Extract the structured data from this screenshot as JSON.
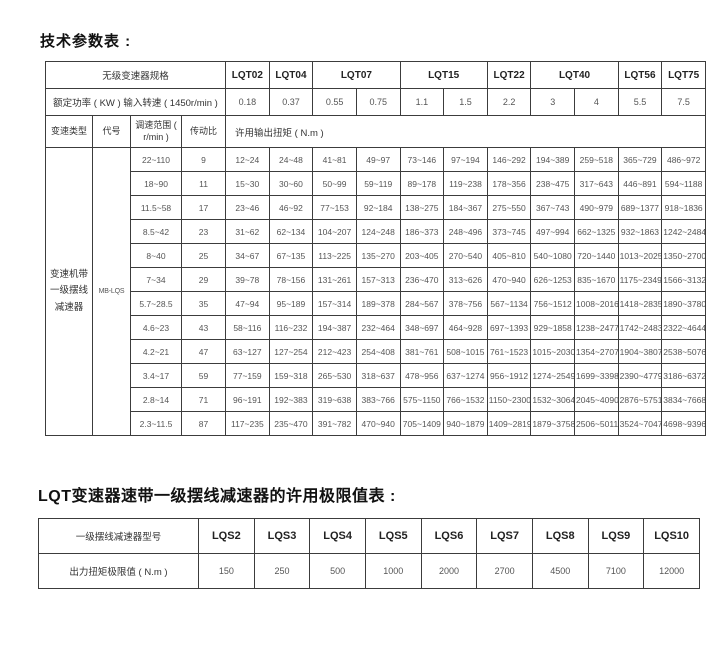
{
  "page": {
    "title1": "技术参数表 :",
    "title2": "LQT变速器速带一级摆线减速器的许用极限值表 :"
  },
  "table1": {
    "spec_header": "无级变速器规格",
    "power_header": "额定功率 ( KW )  输入转速 ( 1450r/min )",
    "models": [
      {
        "label": "LQT02",
        "span": 1
      },
      {
        "label": "LQT04",
        "span": 1
      },
      {
        "label": "LQT07",
        "span": 2
      },
      {
        "label": "LQT15",
        "span": 2
      },
      {
        "label": "LQT22",
        "span": 1
      },
      {
        "label": "LQT40",
        "span": 2
      },
      {
        "label": "LQT56",
        "span": 1
      },
      {
        "label": "LQT75",
        "span": 1
      }
    ],
    "powers": [
      "0.18",
      "0.37",
      "0.55",
      "0.75",
      "1.1",
      "1.5",
      "2.2",
      "3",
      "4",
      "5.5",
      "7.5"
    ],
    "col_headers": [
      "变速类型",
      "代号",
      "调速范围 ( r/min )",
      "传动比"
    ],
    "torque_header": "许用输出扭矩 ( N.m )",
    "type_label": "变速机带一级摆线减速器",
    "code_label": "MB-LQS",
    "rows": [
      {
        "range": "22~110",
        "ratio": "9",
        "torques": [
          "12~24",
          "24~48",
          "41~81",
          "49~97",
          "73~146",
          "97~194",
          "146~292",
          "194~389",
          "259~518",
          "365~729",
          "486~972"
        ]
      },
      {
        "range": "18~90",
        "ratio": "11",
        "torques": [
          "15~30",
          "30~60",
          "50~99",
          "59~119",
          "89~178",
          "119~238",
          "178~356",
          "238~475",
          "317~643",
          "446~891",
          "594~1188"
        ]
      },
      {
        "range": "11.5~58",
        "ratio": "17",
        "torques": [
          "23~46",
          "46~92",
          "77~153",
          "92~184",
          "138~275",
          "184~367",
          "275~550",
          "367~743",
          "490~979",
          "689~1377",
          "918~1836"
        ]
      },
      {
        "range": "8.5~42",
        "ratio": "23",
        "torques": [
          "31~62",
          "62~134",
          "104~207",
          "124~248",
          "186~373",
          "248~496",
          "373~745",
          "497~994",
          "662~1325",
          "932~1863",
          "1242~2484"
        ]
      },
      {
        "range": "8~40",
        "ratio": "25",
        "torques": [
          "34~67",
          "67~135",
          "113~225",
          "135~270",
          "203~405",
          "270~540",
          "405~810",
          "540~1080",
          "720~1440",
          "1013~2025",
          "1350~2700"
        ]
      },
      {
        "range": "7~34",
        "ratio": "29",
        "torques": [
          "39~78",
          "78~156",
          "131~261",
          "157~313",
          "236~470",
          "313~626",
          "470~940",
          "626~1253",
          "835~1670",
          "1175~2349",
          "1566~3132"
        ]
      },
      {
        "range": "5.7~28.5",
        "ratio": "35",
        "torques": [
          "47~94",
          "95~189",
          "157~314",
          "189~378",
          "284~567",
          "378~756",
          "567~1134",
          "756~1512",
          "1008~2016",
          "1418~2835",
          "1890~3780"
        ]
      },
      {
        "range": "4.6~23",
        "ratio": "43",
        "torques": [
          "58~116",
          "116~232",
          "194~387",
          "232~464",
          "348~697",
          "464~928",
          "697~1393",
          "929~1858",
          "1238~2477",
          "1742~2483",
          "2322~4644"
        ]
      },
      {
        "range": "4.2~21",
        "ratio": "47",
        "torques": [
          "63~127",
          "127~254",
          "212~423",
          "254~408",
          "381~761",
          "508~1015",
          "761~1523",
          "1015~2030",
          "1354~2707",
          "1904~3807",
          "2538~5076"
        ]
      },
      {
        "range": "3.4~17",
        "ratio": "59",
        "torques": [
          "77~159",
          "159~318",
          "265~530",
          "318~637",
          "478~956",
          "637~1274",
          "956~1912",
          "1274~2549",
          "1699~3398",
          "2390~4779",
          "3186~6372"
        ]
      },
      {
        "range": "2.8~14",
        "ratio": "71",
        "torques": [
          "96~191",
          "192~383",
          "319~638",
          "383~766",
          "575~1150",
          "766~1532",
          "1150~2300",
          "1532~3064",
          "2045~4090",
          "2876~5751",
          "3834~7668"
        ]
      },
      {
        "range": "2.3~11.5",
        "ratio": "87",
        "torques": [
          "117~235",
          "235~470",
          "391~782",
          "470~940",
          "705~1409",
          "940~1879",
          "1409~2819",
          "1879~3758",
          "2506~5011",
          "3524~7047",
          "4698~9396"
        ]
      }
    ]
  },
  "table2": {
    "model_header": "一级摆线减速器型号",
    "torque_header": "出力扭矩极限值 ( N.m )",
    "models": [
      "LQS2",
      "LQS3",
      "LQS4",
      "LQS5",
      "LQS6",
      "LQS7",
      "LQS8",
      "LQS9",
      "LQS10"
    ],
    "values": [
      "150",
      "250",
      "500",
      "1000",
      "2000",
      "2700",
      "4500",
      "7100",
      "12000"
    ]
  },
  "colors": {
    "border": "#3c3c3c",
    "text": "#555555",
    "title": "#111111",
    "background": "#ffffff"
  }
}
